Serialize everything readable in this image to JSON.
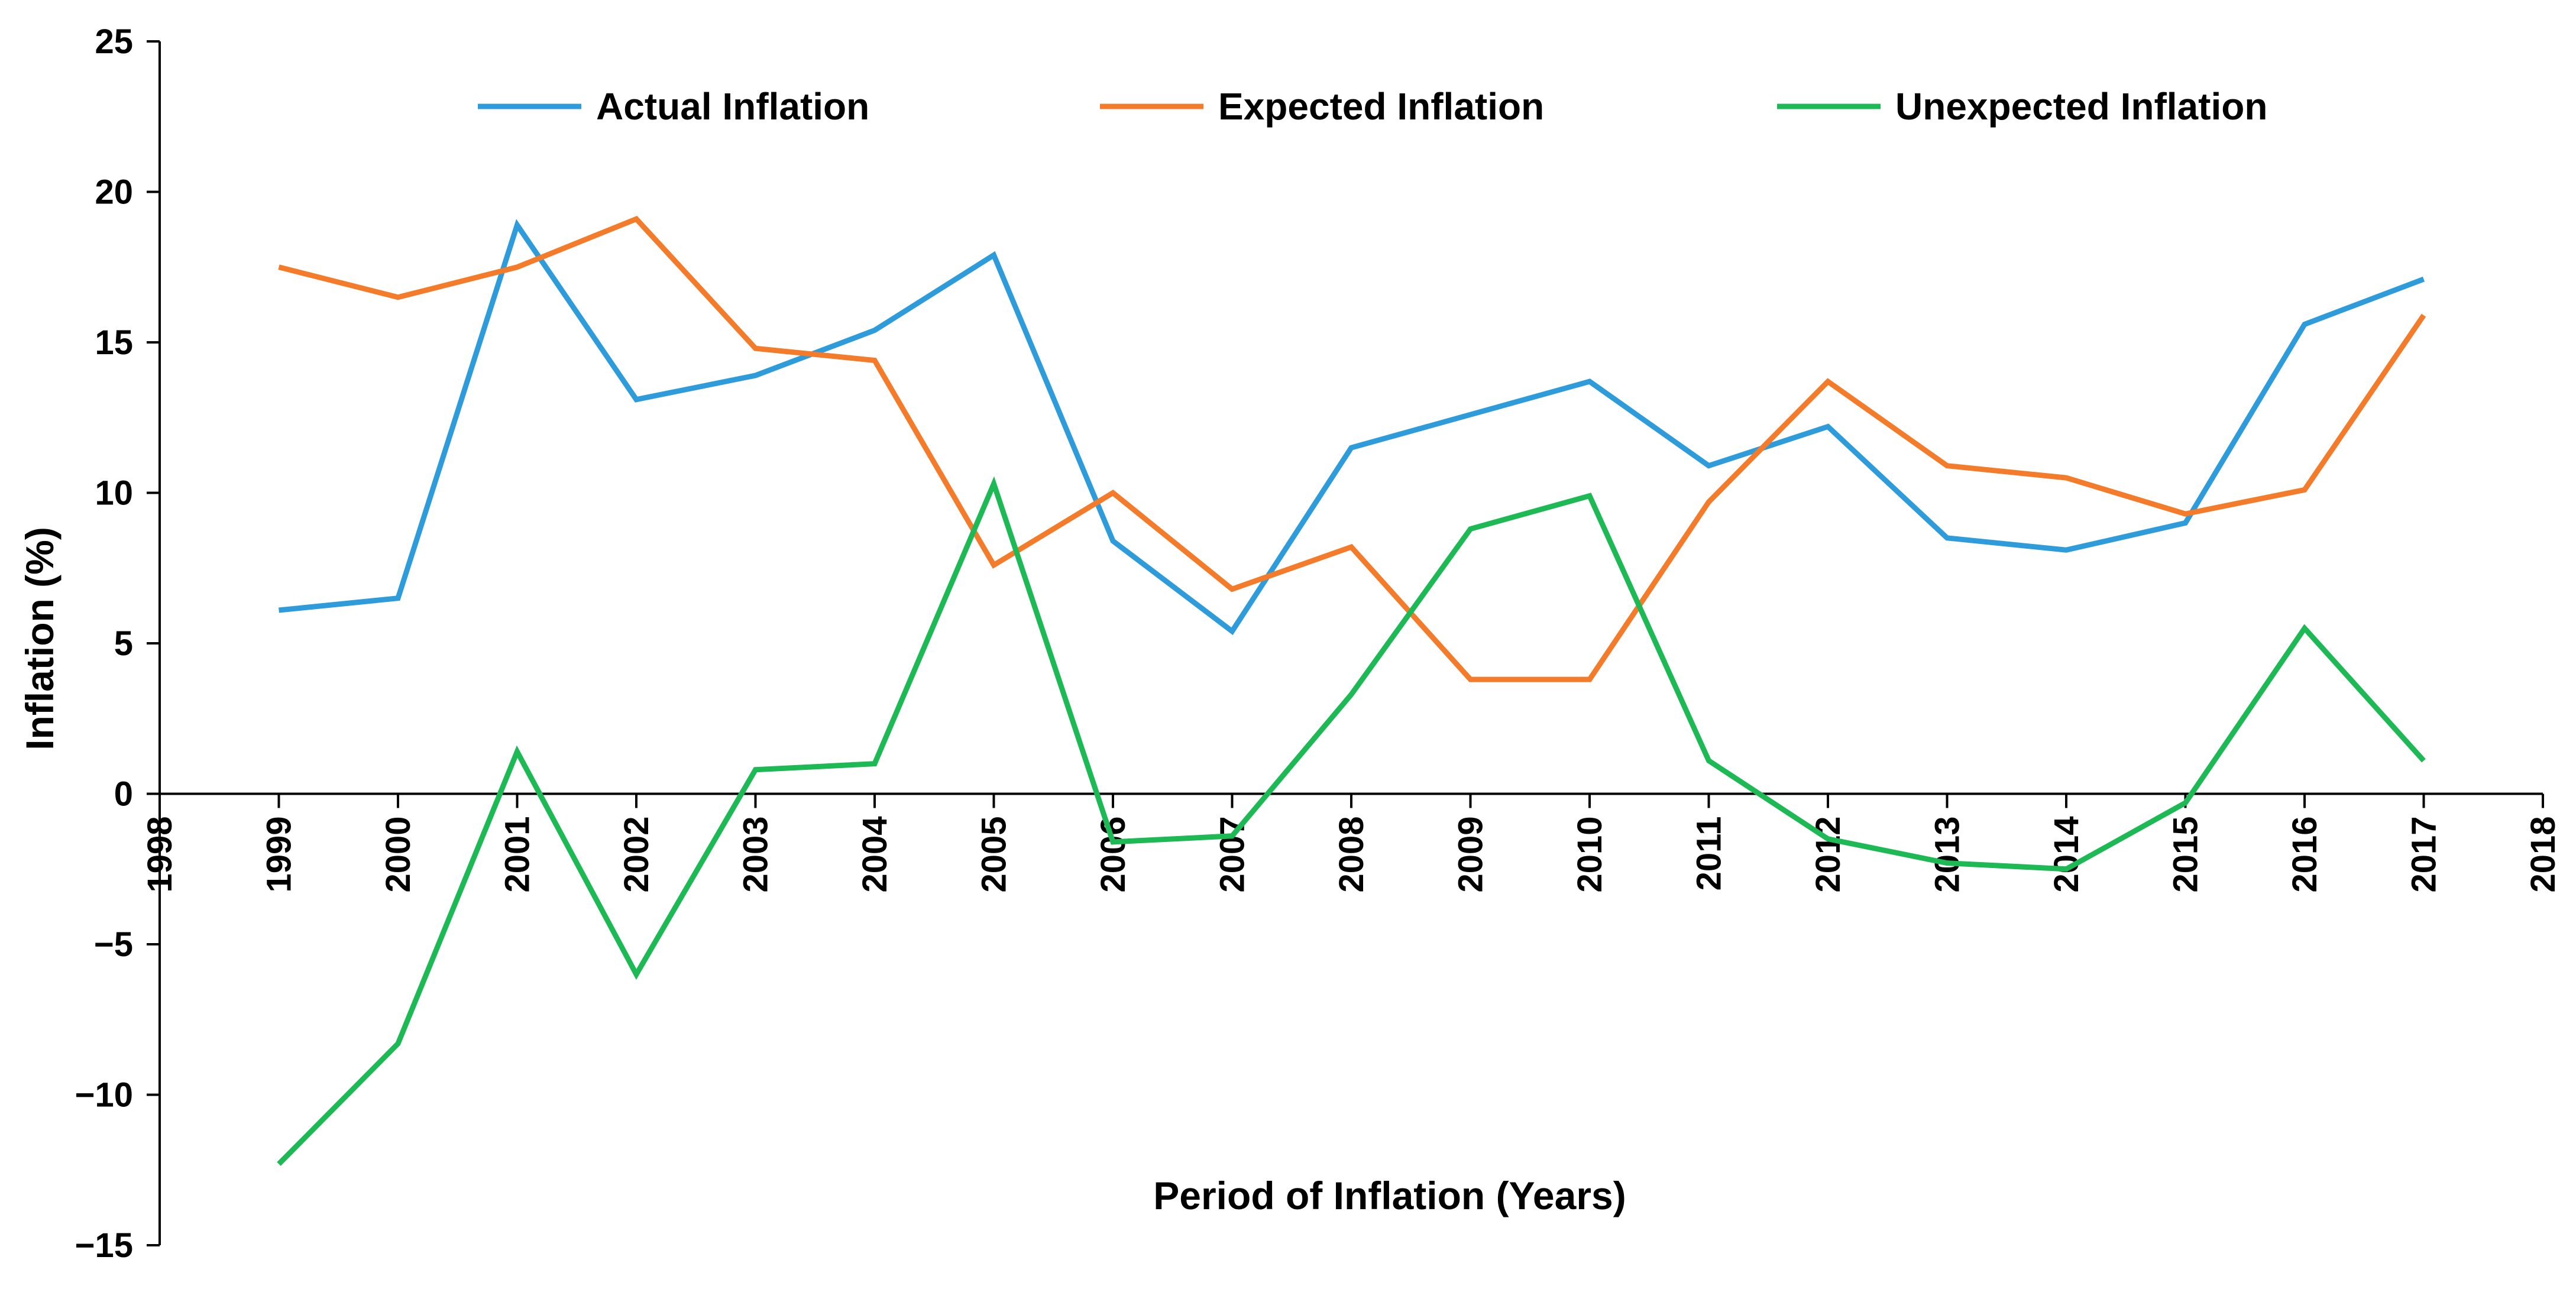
{
  "chart_data": {
    "type": "line",
    "title": "",
    "xlabel": "Period of Inflation (Years)",
    "ylabel": "Inflation (%)",
    "xlim": [
      1998,
      2018
    ],
    "ylim": [
      -15,
      25
    ],
    "x_ticks": [
      "1998",
      "1999",
      "2000",
      "2001",
      "2002",
      "2003",
      "2004",
      "2005",
      "2006",
      "2007",
      "2008",
      "2009",
      "2010",
      "2011",
      "2012",
      "2013",
      "2014",
      "2015",
      "2016",
      "2017",
      "2018"
    ],
    "y_ticks": [
      "-15",
      "-10",
      "-5",
      "0",
      "5",
      "10",
      "15",
      "20",
      "25"
    ],
    "grid": false,
    "legend_position": "top",
    "x": [
      1999,
      2000,
      2001,
      2002,
      2003,
      2004,
      2005,
      2006,
      2007,
      2008,
      2009,
      2010,
      2011,
      2012,
      2013,
      2014,
      2015,
      2016,
      2017
    ],
    "series": [
      {
        "name": "Actual Inflation",
        "color": "#2E9BDA",
        "values": [
          6.1,
          6.5,
          18.9,
          13.1,
          13.9,
          15.4,
          17.9,
          8.4,
          5.4,
          11.5,
          12.6,
          13.7,
          10.9,
          12.2,
          8.5,
          8.1,
          9.0,
          15.6,
          17.1
        ]
      },
      {
        "name": "Expected Inflation",
        "color": "#F47B2A",
        "values": [
          17.5,
          16.5,
          17.5,
          19.1,
          14.8,
          14.4,
          7.6,
          10.0,
          6.8,
          8.2,
          3.8,
          3.8,
          9.7,
          13.7,
          10.9,
          10.5,
          9.3,
          10.1,
          15.9
        ]
      },
      {
        "name": "Unexpected Inflation",
        "color": "#1DB954",
        "values": [
          -12.3,
          -8.3,
          1.4,
          -6.0,
          0.8,
          1.0,
          10.3,
          -1.6,
          -1.4,
          3.3,
          8.8,
          9.9,
          1.1,
          -1.5,
          -2.3,
          -2.5,
          -0.3,
          5.5,
          1.1
        ]
      }
    ]
  }
}
